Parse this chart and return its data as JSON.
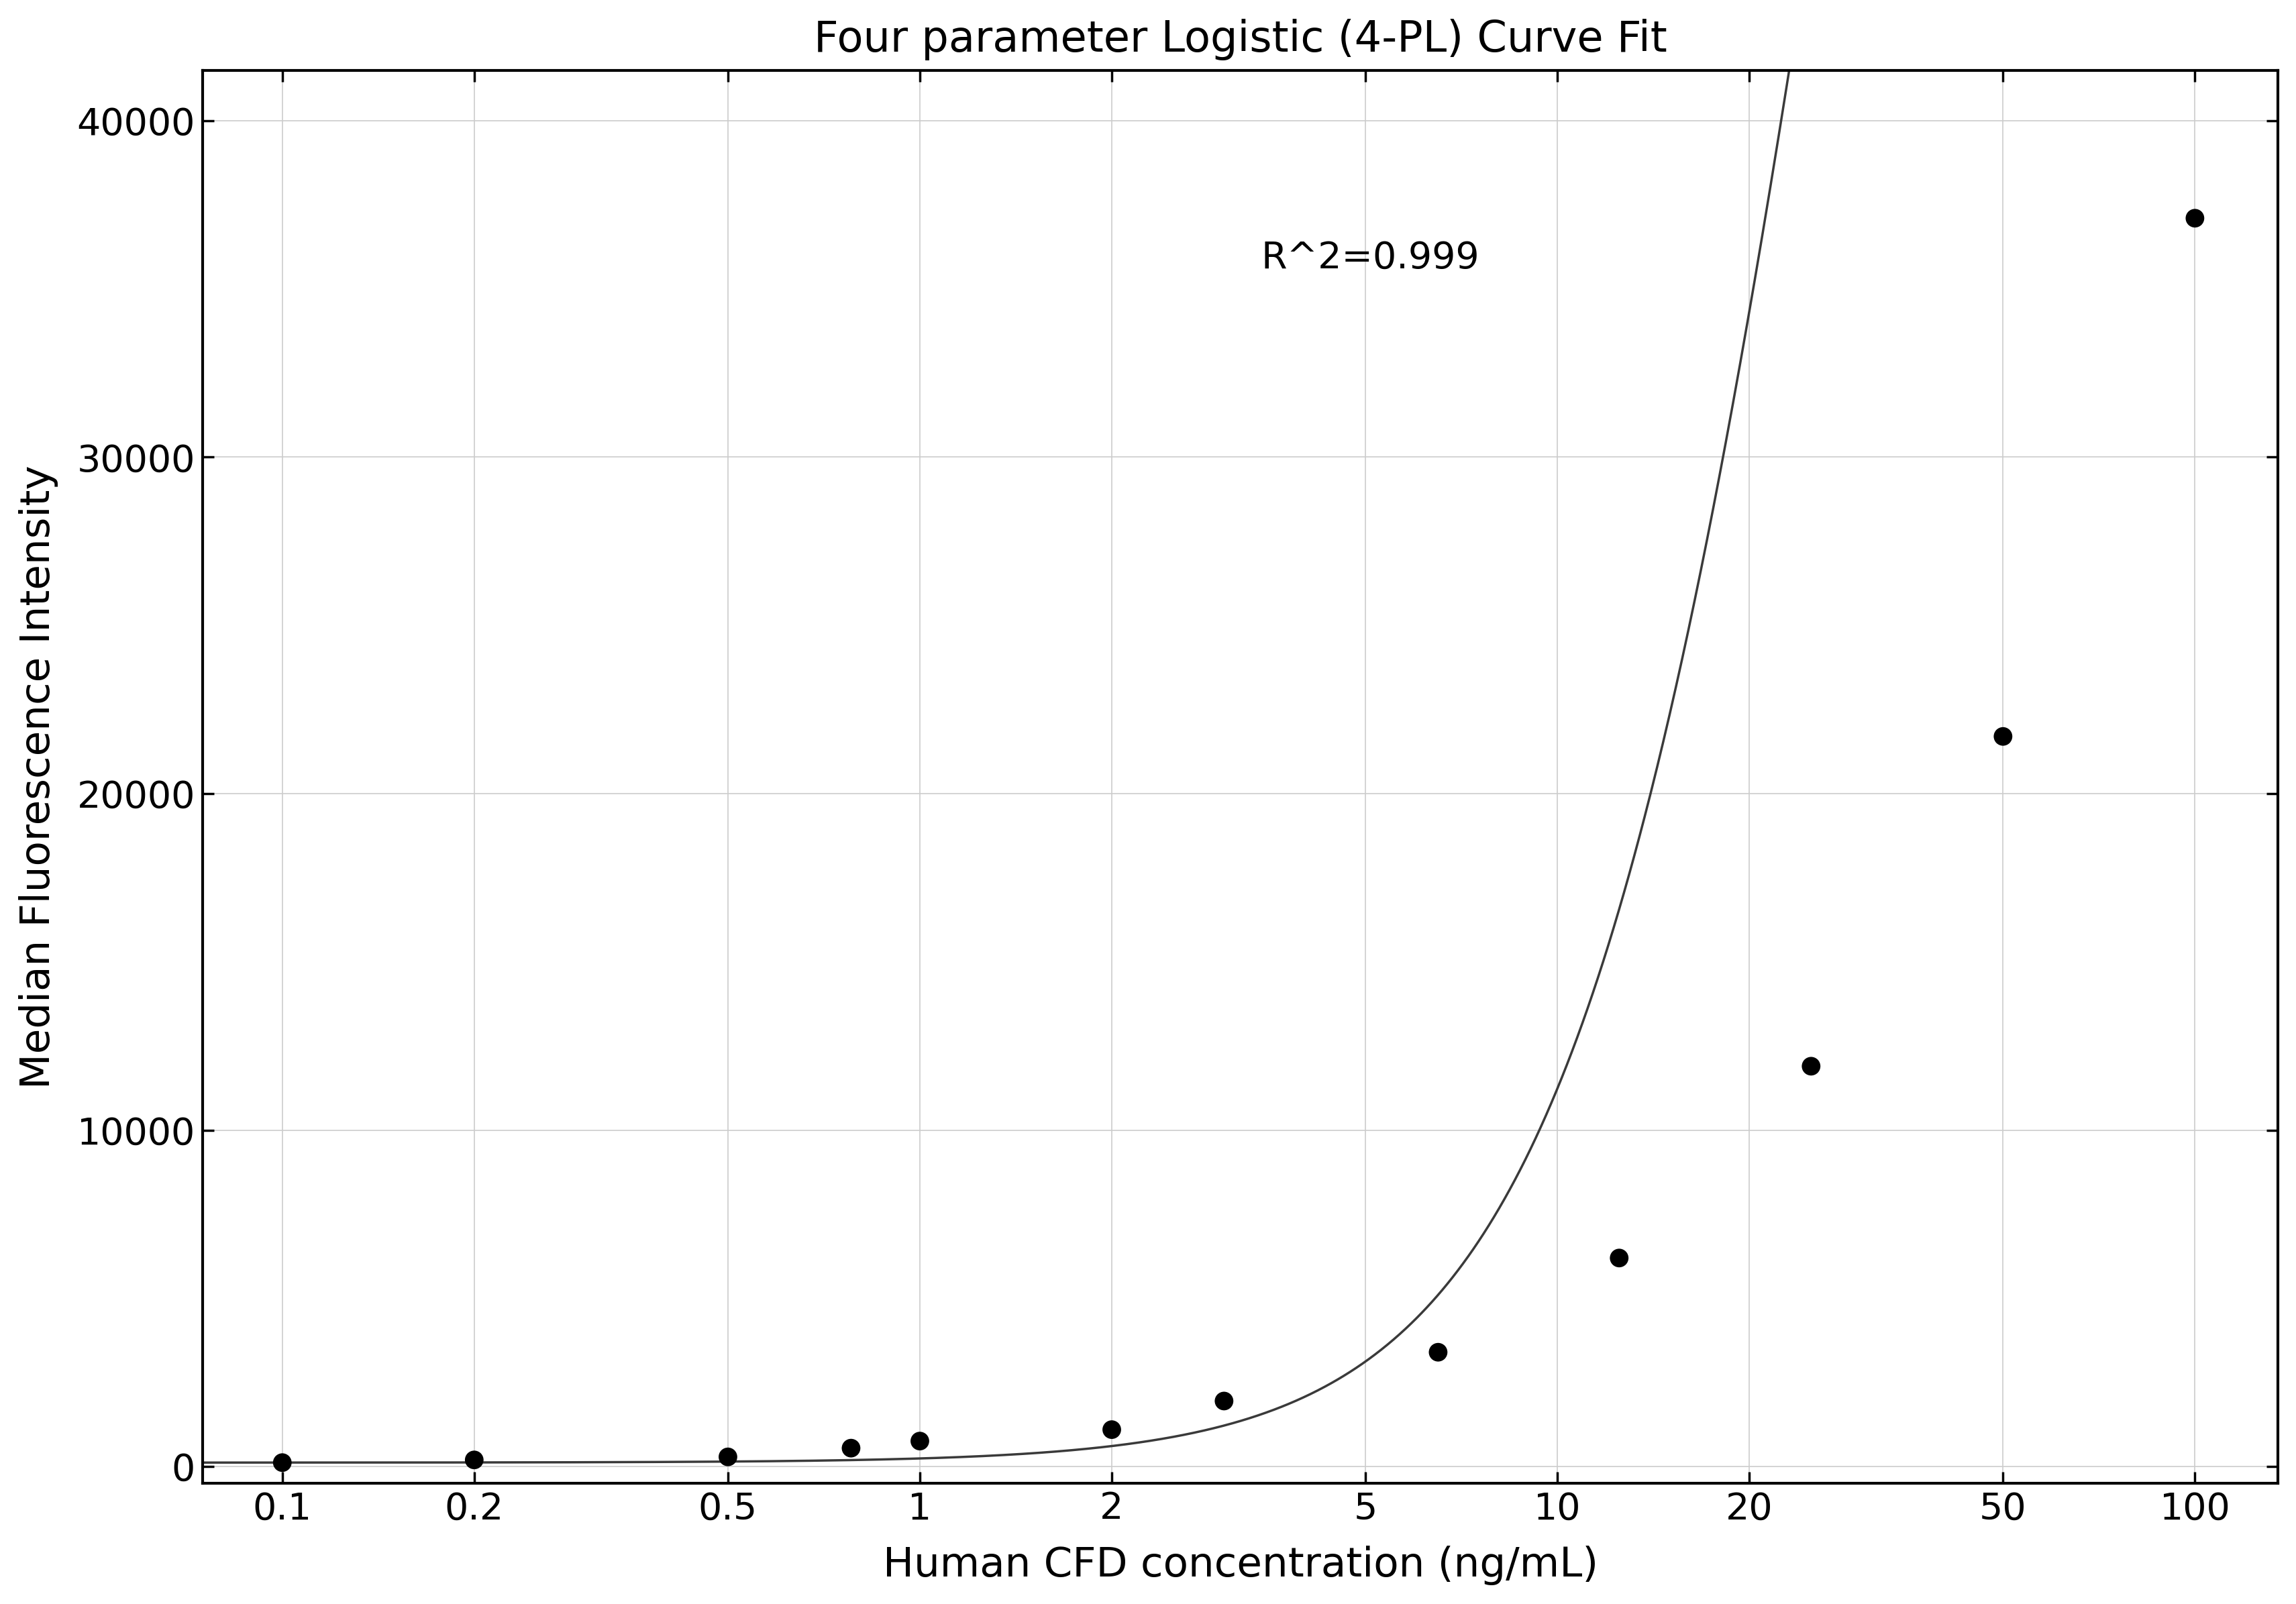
{
  "title": "Four parameter Logistic (4-PL) Curve Fit",
  "xlabel": "Human CFD concentration (ng/mL)",
  "ylabel": "Median Fluorescence Intensity",
  "r_squared_text": "R^2=0.999",
  "data_x": [
    0.1,
    0.2,
    0.5,
    0.78,
    1.0,
    2.0,
    3.0,
    6.5,
    12.5,
    25.0,
    50.0,
    100.0
  ],
  "data_y": [
    120,
    200,
    290,
    550,
    760,
    1100,
    1950,
    3400,
    6200,
    11900,
    21700,
    37100
  ],
  "xlim_log": [
    0.075,
    135
  ],
  "ylim": [
    -500,
    41500
  ],
  "yticks": [
    0,
    10000,
    20000,
    30000,
    40000
  ],
  "xticks": [
    0.1,
    0.2,
    0.5,
    1,
    2,
    5,
    10,
    20,
    50,
    100
  ],
  "xticklabels": [
    "0.1",
    "0.2",
    "0.5",
    "1",
    "2",
    "5",
    "10",
    "20",
    "50",
    "100"
  ],
  "line_color": "#3a3a3a",
  "dot_color": "#000000",
  "grid_color": "#cccccc",
  "background_color": "#ffffff",
  "title_fontsize": 46,
  "label_fontsize": 44,
  "tick_fontsize": 40,
  "annotation_fontsize": 40,
  "dot_size": 400,
  "line_width": 2.5,
  "spine_linewidth": 3.0
}
